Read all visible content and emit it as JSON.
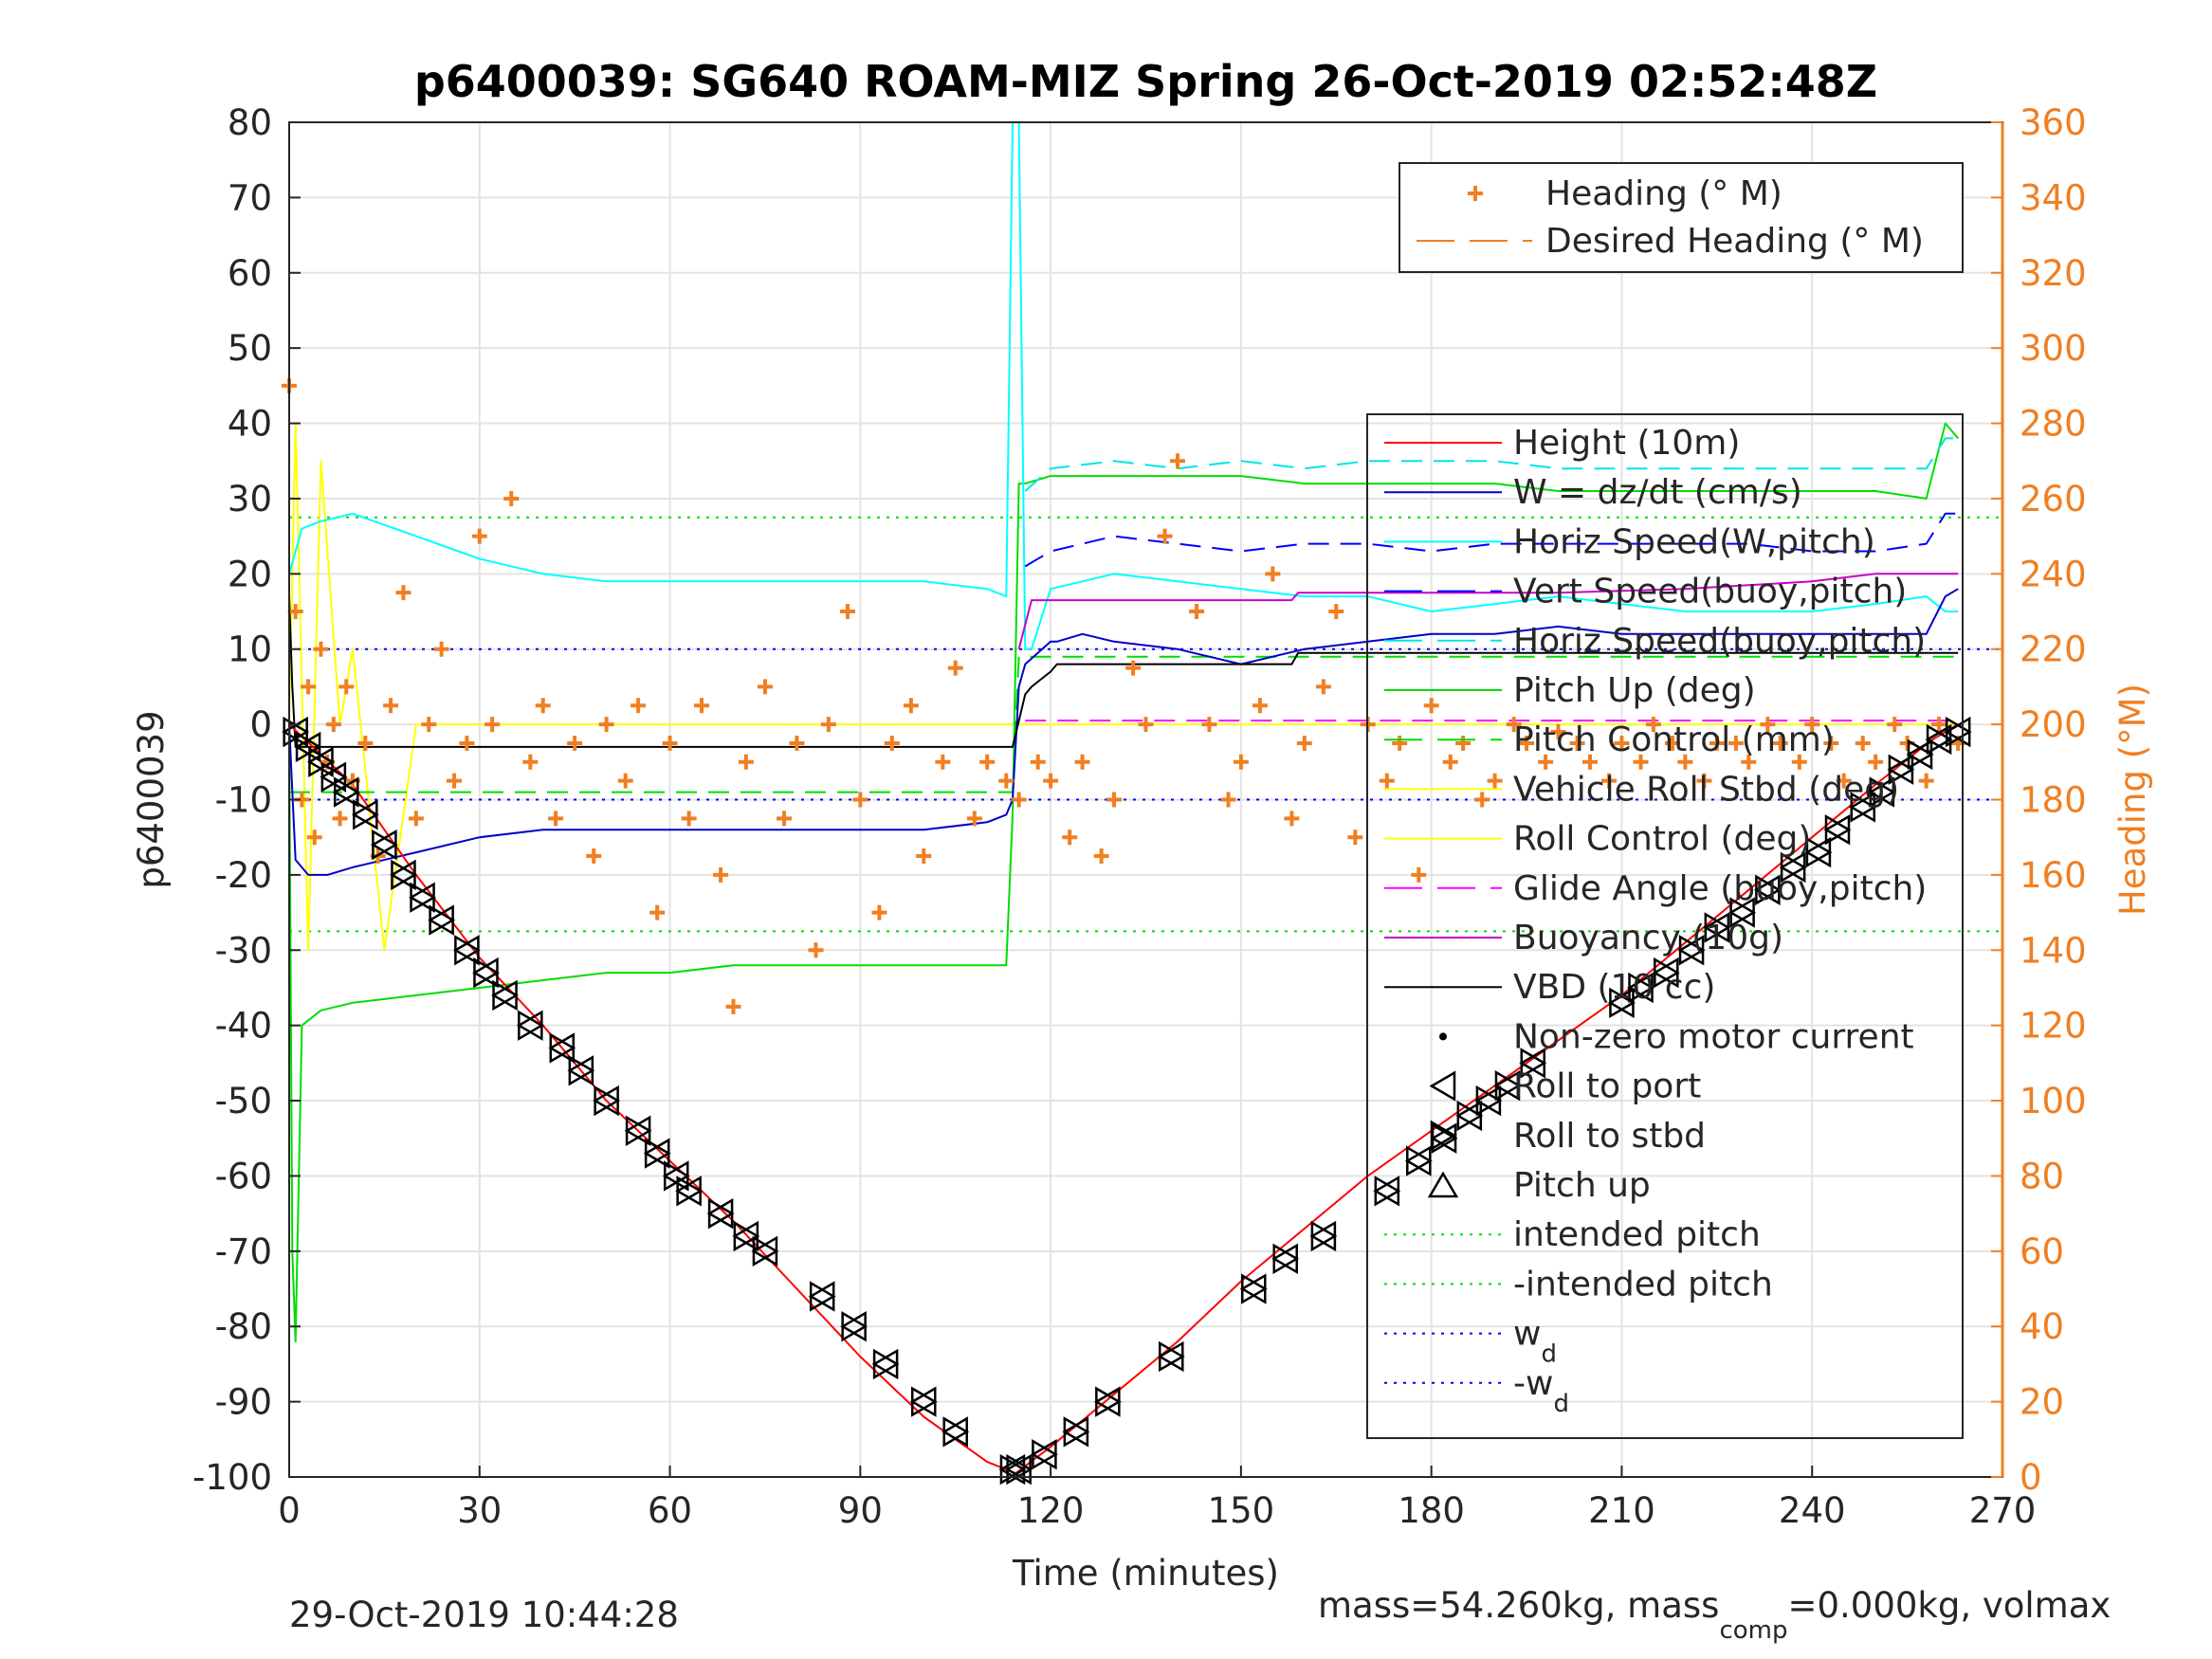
{
  "chart_data": {
    "type": "line",
    "title": "p6400039: SG640 ROAM-MIZ Spring 26-Oct-2019 02:52:48Z",
    "xlabel": "Time (minutes)",
    "ylabel": "p6400039",
    "ylabel_right": "Heading (°M)",
    "xlim": [
      0,
      270
    ],
    "ylim": [
      -100,
      80
    ],
    "ylim_right": [
      0,
      360
    ],
    "xticks": [
      0,
      30,
      60,
      90,
      120,
      150,
      180,
      210,
      240,
      270
    ],
    "yticks": [
      -100,
      -90,
      -80,
      -70,
      -60,
      -50,
      -40,
      -30,
      -20,
      -10,
      0,
      10,
      20,
      30,
      40,
      50,
      60,
      70,
      80
    ],
    "yticks_right": [
      0,
      20,
      40,
      60,
      80,
      100,
      120,
      140,
      160,
      180,
      200,
      220,
      240,
      260,
      280,
      300,
      320,
      340,
      360
    ],
    "grid": true,
    "footer_left": "29-Oct-2019 10:44:28",
    "footer_right": {
      "p1": "mass=54.260kg, mass",
      "sub": "comp",
      "p2": "=0.000kg, volmax"
    },
    "colors": {
      "height": "#ff0000",
      "w": "#0000cc",
      "horiz_w": "#00ffff",
      "vert_buoy": "#0000ff",
      "horiz_buoy": "#00e5e5",
      "pitch": "#00dd00",
      "roll": "#ffff00",
      "glide": "#ff00ff",
      "buoyancy": "#cc00cc",
      "vbd": "#000000",
      "heading": "#f07f22"
    },
    "legend_top": {
      "placement": "top-right",
      "entries": [
        {
          "label": "Heading (° M)",
          "marker": "plus",
          "color": "#f07f22"
        },
        {
          "label": "Desired Heading (° M)",
          "marker": "dash",
          "color": "#f07f22"
        }
      ]
    },
    "legend_main": {
      "placement": "right",
      "entries": [
        {
          "label": "Height (10m)",
          "style": "solid",
          "color": "#ff0000"
        },
        {
          "label": "W = dz/dt (cm/s)",
          "style": "solid",
          "color": "#0000cc"
        },
        {
          "label": "Horiz Speed(W,pitch)",
          "style": "solid",
          "color": "#00ffff"
        },
        {
          "label": "Vert Speed(buoy,pitch)",
          "style": "dash",
          "color": "#0000ff"
        },
        {
          "label": "Horiz Speed(buoy,pitch)",
          "style": "dash",
          "color": "#00e5e5"
        },
        {
          "label": "Pitch Up (deg)",
          "style": "solid",
          "color": "#00dd00"
        },
        {
          "label": "Pitch Control (mm)",
          "style": "dash",
          "color": "#00dd00"
        },
        {
          "label": "Vehicle Roll Stbd (deg)",
          "style": "solid",
          "color": "#ffff00"
        },
        {
          "label": "Roll Control (deg)",
          "style": "solid",
          "color": "#ffff00"
        },
        {
          "label": "Glide Angle (buoy,pitch)",
          "style": "dash",
          "color": "#ff00ff"
        },
        {
          "label": "Buoyancy (10g)",
          "style": "solid",
          "color": "#cc00cc"
        },
        {
          "label": "VBD (10 cc)",
          "style": "solid",
          "color": "#000000"
        },
        {
          "label": "Non-zero motor current",
          "style": "dot",
          "color": "#000000"
        },
        {
          "label": "Roll to port",
          "style": "tri-left",
          "color": "#000000"
        },
        {
          "label": "Roll to stbd",
          "style": "tri-right",
          "color": "#000000"
        },
        {
          "label": "Pitch up",
          "style": "tri-up",
          "color": "#000000"
        },
        {
          "label": "intended pitch",
          "style": "dotted",
          "color": "#00dd00"
        },
        {
          "label": "-intended pitch",
          "style": "dotted",
          "color": "#00dd00"
        },
        {
          "label": "w",
          "sub": "d",
          "style": "dotted",
          "color": "#0000ff"
        },
        {
          "label": "-w",
          "sub": "d",
          "style": "dotted",
          "color": "#0000ff"
        }
      ]
    },
    "reference_lines": {
      "intended_pitch": 27.5,
      "neg_intended_pitch": -27.5,
      "wd": 10,
      "neg_wd": -10
    },
    "series": [
      {
        "name": "Height (10m)",
        "x": [
          0,
          10,
          20,
          30,
          40,
          50,
          60,
          70,
          80,
          90,
          100,
          110,
          114.5,
          120,
          130,
          140,
          150,
          160,
          170,
          180,
          190,
          200,
          210,
          220,
          230,
          240,
          250,
          259,
          263
        ],
        "values": [
          0,
          -8,
          -20,
          -31,
          -40,
          -50,
          -58,
          -66,
          -75,
          -84,
          -92,
          -98,
          -99.5,
          -96,
          -89,
          -82,
          -74,
          -67,
          -60,
          -54,
          -48,
          -42,
          -36,
          -29,
          -22,
          -15,
          -8,
          -2,
          0
        ]
      },
      {
        "name": "W = dz/dt (cm/s)",
        "x": [
          0,
          1,
          3,
          6,
          10,
          20,
          30,
          40,
          50,
          60,
          70,
          80,
          90,
          100,
          110,
          113,
          114,
          115,
          116,
          120,
          121,
          125,
          130,
          140,
          150,
          160,
          170,
          180,
          190,
          200,
          210,
          220,
          230,
          240,
          250,
          258,
          261,
          263
        ],
        "values": [
          0,
          -18,
          -20,
          -20,
          -19,
          -17,
          -15,
          -14,
          -14,
          -14,
          -14,
          -14,
          -14,
          -14,
          -13,
          -12,
          -10,
          5,
          8,
          11,
          11,
          12,
          11,
          10,
          8,
          10,
          11,
          12,
          12,
          13,
          12,
          12,
          12,
          12,
          12,
          12,
          17,
          18
        ]
      },
      {
        "name": "Horiz Speed(W,pitch)",
        "x": [
          0,
          2,
          5,
          10,
          20,
          30,
          40,
          50,
          60,
          70,
          80,
          90,
          100,
          110,
          113,
          114,
          115,
          116,
          117,
          120,
          125,
          130,
          140,
          150,
          160,
          170,
          180,
          190,
          200,
          210,
          220,
          230,
          240,
          250,
          258,
          261,
          263
        ],
        "values": [
          20,
          26,
          27,
          28,
          25,
          22,
          20,
          19,
          19,
          19,
          19,
          19,
          19,
          18,
          17,
          80,
          80,
          10,
          10,
          18,
          19,
          20,
          19,
          18,
          17,
          17,
          15,
          16,
          17,
          16,
          15,
          15,
          15,
          16,
          17,
          15,
          15
        ]
      },
      {
        "name": "Vert Speed(buoy,pitch)",
        "x": [
          116,
          120,
          125,
          130,
          140,
          150,
          160,
          170,
          180,
          190,
          200,
          210,
          220,
          230,
          240,
          250,
          258,
          261,
          263
        ],
        "values": [
          21,
          23,
          24,
          25,
          24,
          23,
          24,
          24,
          23,
          24,
          24,
          24,
          24,
          24,
          23,
          23,
          24,
          28,
          28
        ]
      },
      {
        "name": "Horiz Speed(buoy,pitch)",
        "x": [
          116,
          120,
          130,
          140,
          150,
          160,
          170,
          180,
          190,
          200,
          210,
          220,
          230,
          240,
          250,
          258,
          261,
          263
        ],
        "values": [
          31,
          34,
          35,
          34,
          35,
          34,
          35,
          35,
          35,
          34,
          34,
          34,
          34,
          34,
          34,
          34,
          38,
          38
        ]
      },
      {
        "name": "Pitch Up (deg)",
        "x": [
          0,
          0.5,
          1,
          2,
          5,
          10,
          20,
          30,
          40,
          50,
          60,
          70,
          80,
          90,
          100,
          110,
          113,
          114,
          115,
          116,
          120,
          130,
          140,
          150,
          160,
          170,
          180,
          190,
          200,
          210,
          220,
          230,
          240,
          250,
          258,
          261,
          263
        ],
        "values": [
          0,
          -70,
          -82,
          -40,
          -38,
          -37,
          -36,
          -35,
          -34,
          -33,
          -33,
          -32,
          -32,
          -32,
          -32,
          -32,
          -32,
          -12,
          32,
          32,
          33,
          33,
          33,
          33,
          32,
          32,
          32,
          32,
          31,
          31,
          31,
          31,
          31,
          31,
          30,
          40,
          38
        ]
      },
      {
        "name": "Pitch Control (mm)",
        "x": [
          0,
          114,
          115,
          258,
          263
        ],
        "values": [
          -9,
          -9,
          9,
          9,
          9
        ]
      },
      {
        "name": "Roll Control (deg)",
        "x": [
          0,
          1,
          3,
          5,
          8,
          10,
          15,
          20,
          30,
          40,
          50,
          60,
          70,
          80,
          90,
          100,
          110,
          114,
          116,
          120,
          130,
          140,
          150,
          160,
          170,
          180,
          190,
          200,
          210,
          220,
          230,
          240,
          250,
          258,
          263
        ],
        "values": [
          0,
          40,
          -30,
          35,
          0,
          10,
          -30,
          0,
          0,
          0,
          0,
          0,
          0,
          0,
          0,
          0,
          0,
          0,
          0,
          0,
          0,
          0,
          0,
          0,
          0,
          0,
          0,
          0,
          0,
          0,
          0,
          0,
          0,
          0,
          0
        ]
      },
      {
        "name": "Glide Angle (buoy,pitch)",
        "x": [
          116,
          263
        ],
        "values": [
          0.5,
          0.5
        ]
      },
      {
        "name": "Buoyancy (10g)",
        "x": [
          115,
          117,
          158,
          159,
          170,
          180,
          200,
          220,
          240,
          250,
          258,
          263
        ],
        "values": [
          10,
          16.5,
          16.5,
          17.5,
          17.5,
          17.5,
          17.5,
          18,
          19,
          20,
          20,
          20
        ]
      },
      {
        "name": "VBD (10 cc)",
        "x": [
          0,
          0.5,
          1,
          113,
          114,
          116,
          117,
          120,
          121,
          158,
          159,
          263
        ],
        "values": [
          17,
          5,
          -3,
          -3,
          -3,
          4,
          5,
          7,
          8,
          8,
          9.5,
          9.5
        ]
      },
      {
        "name": "Heading (° M)",
        "axis": "right",
        "marker": "plus",
        "x": [
          0,
          1,
          2,
          3,
          4,
          5,
          6,
          7,
          8,
          9,
          10,
          12,
          14,
          16,
          18,
          20,
          22,
          24,
          26,
          28,
          30,
          32,
          35,
          38,
          40,
          42,
          45,
          48,
          50,
          53,
          55,
          58,
          60,
          63,
          65,
          68,
          70,
          72,
          75,
          78,
          80,
          83,
          85,
          88,
          90,
          93,
          95,
          98,
          100,
          103,
          105,
          108,
          110,
          113,
          115,
          118,
          120,
          123,
          125,
          128,
          130,
          133,
          135,
          138,
          140,
          143,
          145,
          148,
          150,
          153,
          155,
          158,
          160,
          163,
          165,
          168,
          170,
          173,
          175,
          178,
          180,
          183,
          185,
          188,
          190,
          193,
          195,
          198,
          200,
          203,
          205,
          208,
          210,
          213,
          215,
          218,
          220,
          223,
          225,
          228,
          230,
          233,
          235,
          238,
          240,
          243,
          245,
          248,
          250,
          253,
          255,
          258,
          260,
          263
        ],
        "values": [
          290,
          230,
          180,
          210,
          170,
          220,
          190,
          200,
          175,
          210,
          185,
          195,
          165,
          205,
          235,
          175,
          200,
          220,
          185,
          195,
          250,
          200,
          260,
          190,
          205,
          175,
          195,
          165,
          200,
          185,
          205,
          150,
          195,
          175,
          205,
          160,
          125,
          190,
          210,
          175,
          195,
          140,
          200,
          230,
          180,
          150,
          195,
          205,
          165,
          190,
          215,
          175,
          190,
          185,
          180,
          190,
          185,
          170,
          190,
          165,
          180,
          215,
          200,
          250,
          270,
          230,
          200,
          180,
          190,
          205,
          240,
          175,
          195,
          210,
          230,
          170,
          200,
          185,
          195,
          160,
          205,
          190,
          195,
          180,
          185,
          200,
          195,
          190,
          198,
          195,
          190,
          185,
          195,
          190,
          200,
          195,
          190,
          185,
          195,
          195,
          190,
          200,
          195,
          190,
          200,
          195,
          185,
          195,
          190,
          200,
          195,
          185,
          200,
          195
        ]
      }
    ],
    "event_markers": {
      "x": [
        1,
        3,
        5,
        7,
        9,
        12,
        15,
        18,
        21,
        24,
        28,
        31,
        34,
        38,
        43,
        46,
        50,
        55,
        58,
        61,
        63,
        68,
        72,
        75,
        84,
        89,
        94,
        100,
        105,
        114,
        115,
        119,
        124,
        129,
        139,
        152,
        157,
        163,
        173,
        178,
        182,
        186,
        189,
        192,
        196,
        210,
        213,
        217,
        221,
        225,
        229,
        233,
        237,
        241,
        244,
        248,
        251,
        254,
        257,
        260,
        263
      ],
      "values": [
        -1,
        -3,
        -5,
        -7,
        -9,
        -12,
        -16,
        -20,
        -23,
        -26,
        -30,
        -33,
        -36,
        -40,
        -43,
        -46,
        -50,
        -54,
        -57,
        -60,
        -62,
        -65,
        -68,
        -70,
        -76,
        -80,
        -85,
        -90,
        -94,
        -99,
        -99,
        -97,
        -94,
        -90,
        -84,
        -75,
        -71,
        -68,
        -62,
        -58,
        -55,
        -52,
        -50,
        -48,
        -45,
        -37,
        -35,
        -33,
        -30,
        -27,
        -25,
        -22,
        -19,
        -17,
        -14,
        -11,
        -9,
        -6,
        -4,
        -2,
        -1
      ]
    }
  }
}
